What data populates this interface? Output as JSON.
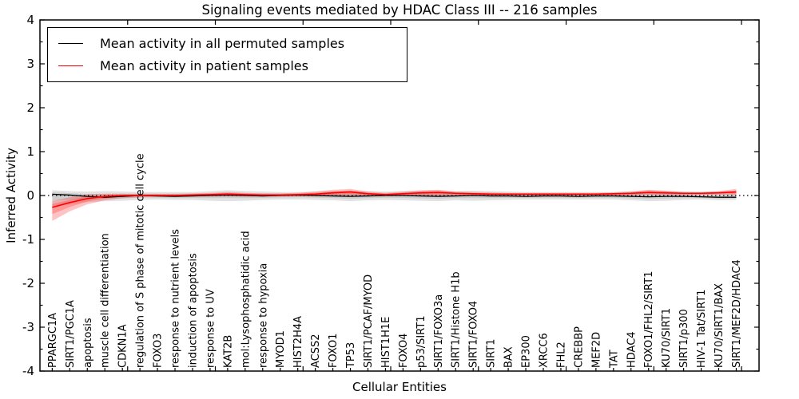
{
  "chart_data": {
    "type": "line",
    "title": "Signaling events mediated by HDAC Class III -- 216 samples",
    "xlabel": "Cellular Entities",
    "ylabel": "Inferred Activity",
    "ylim": [
      -4,
      4
    ],
    "yticks": [
      -4,
      -3,
      -2,
      -1,
      0,
      1,
      2,
      3,
      4
    ],
    "y_minor_step": 0.5,
    "x_major_ticks": [
      5,
      10,
      15,
      20,
      25,
      30,
      35,
      40
    ],
    "grid": false,
    "legend_position": "upper left",
    "zero_line": {
      "style": "dotted",
      "color": "#000000"
    },
    "categories": [
      "PPARGC1A",
      "SIRT1/PGC1A",
      "apoptosis",
      "muscle cell differentiation",
      "CDKN1A",
      "regulation of S phase of mitotic cell cycle",
      "FOXO3",
      "response to nutrient levels",
      "induction of apoptosis",
      "response to UV",
      "KAT2B",
      "mol:Lysophosphatidic acid",
      "response to hypoxia",
      "MYOD1",
      "HIST2H4A",
      "ACSS2",
      "FOXO1",
      "TP53",
      "SIRT1/PCAF/MYOD",
      "HIST1H1E",
      "FOXO4",
      "p53/SIRT1",
      "SIRT1/FOXO3a",
      "SIRT1/Histone H1b",
      "SIRT1/FOXO4",
      "SIRT1",
      "BAX",
      "EP300",
      "XRCC6",
      "FHL2",
      "CREBBP",
      "MEF2D",
      "TAT",
      "HDAC4",
      "FOXO1/FHL2/SIRT1",
      "KU70/SIRT1",
      "SIRT1/p300",
      "HIV-1 Tat/SIRT1",
      "KU70/SIRT1/BAX",
      "SIRT1/MEF2D/HDAC4"
    ],
    "series": [
      {
        "name": "Mean activity in all permuted samples",
        "color": "#000000",
        "values": [
          0.03,
          0.01,
          -0.02,
          -0.04,
          -0.02,
          0.0,
          -0.01,
          -0.02,
          -0.01,
          0.0,
          0.01,
          0.0,
          -0.01,
          0.0,
          0.01,
          0.0,
          -0.01,
          -0.02,
          -0.01,
          0.0,
          0.0,
          -0.01,
          -0.02,
          -0.01,
          0.0,
          -0.01,
          -0.01,
          -0.02,
          -0.01,
          -0.01,
          -0.02,
          -0.01,
          -0.01,
          -0.02,
          -0.03,
          -0.02,
          -0.02,
          -0.03,
          -0.04,
          -0.04
        ]
      },
      {
        "name": "Mean activity in patient samples",
        "color": "#ff0000",
        "values": [
          -0.27,
          -0.16,
          -0.07,
          -0.02,
          0.0,
          0.0,
          0.0,
          0.0,
          0.01,
          0.02,
          0.03,
          0.02,
          0.01,
          0.01,
          0.02,
          0.03,
          0.06,
          0.08,
          0.04,
          0.02,
          0.04,
          0.06,
          0.07,
          0.05,
          0.04,
          0.03,
          0.03,
          0.03,
          0.03,
          0.03,
          0.03,
          0.03,
          0.04,
          0.05,
          0.07,
          0.06,
          0.05,
          0.05,
          0.06,
          0.08
        ]
      }
    ],
    "bands": [
      {
        "name": "permuted-samples-spread",
        "color_rgb": [
          150,
          150,
          150
        ],
        "opacity": 0.28,
        "upper": [
          0.12,
          0.1,
          0.09,
          0.1,
          0.09,
          0.08,
          0.08,
          0.08,
          0.08,
          0.1,
          0.12,
          0.1,
          0.09,
          0.08,
          0.08,
          0.09,
          0.1,
          0.11,
          0.1,
          0.09,
          0.1,
          0.11,
          0.12,
          0.1,
          0.11,
          0.1,
          0.09,
          0.08,
          0.08,
          0.08,
          0.08,
          0.08,
          0.08,
          0.1,
          0.12,
          0.11,
          0.09,
          0.08,
          0.1,
          0.09
        ],
        "lower": [
          -0.25,
          -0.2,
          -0.15,
          -0.13,
          -0.12,
          -0.1,
          -0.09,
          -0.1,
          -0.1,
          -0.12,
          -0.13,
          -0.12,
          -0.1,
          -0.09,
          -0.09,
          -0.1,
          -0.11,
          -0.13,
          -0.11,
          -0.1,
          -0.11,
          -0.12,
          -0.13,
          -0.11,
          -0.12,
          -0.11,
          -0.1,
          -0.09,
          -0.09,
          -0.09,
          -0.09,
          -0.09,
          -0.09,
          -0.11,
          -0.13,
          -0.12,
          -0.1,
          -0.09,
          -0.11,
          -0.1
        ]
      },
      {
        "name": "patient-samples-spread",
        "color_rgb": [
          255,
          40,
          40
        ],
        "opacity": 0.28,
        "upper": [
          -0.12,
          -0.04,
          0.03,
          0.04,
          0.04,
          0.04,
          0.04,
          0.04,
          0.05,
          0.06,
          0.08,
          0.06,
          0.05,
          0.05,
          0.06,
          0.09,
          0.13,
          0.15,
          0.09,
          0.06,
          0.09,
          0.12,
          0.13,
          0.09,
          0.08,
          0.07,
          0.06,
          0.06,
          0.06,
          0.06,
          0.06,
          0.06,
          0.07,
          0.09,
          0.13,
          0.11,
          0.08,
          0.08,
          0.1,
          0.15
        ],
        "lower": [
          -0.58,
          -0.36,
          -0.2,
          -0.11,
          -0.06,
          -0.04,
          -0.03,
          -0.03,
          -0.02,
          -0.02,
          -0.02,
          -0.02,
          -0.02,
          -0.02,
          -0.02,
          -0.02,
          -0.02,
          -0.01,
          -0.01,
          -0.01,
          -0.01,
          -0.01,
          -0.01,
          0.0,
          0.0,
          0.0,
          0.0,
          0.0,
          0.0,
          0.0,
          0.0,
          0.0,
          0.0,
          0.0,
          0.01,
          0.01,
          0.01,
          0.01,
          0.02,
          0.01
        ]
      }
    ]
  },
  "legend": {
    "entries": [
      {
        "label": "Mean activity in all permuted samples",
        "color": "#000000"
      },
      {
        "label": "Mean activity in patient samples",
        "color": "#ff0000"
      }
    ]
  }
}
